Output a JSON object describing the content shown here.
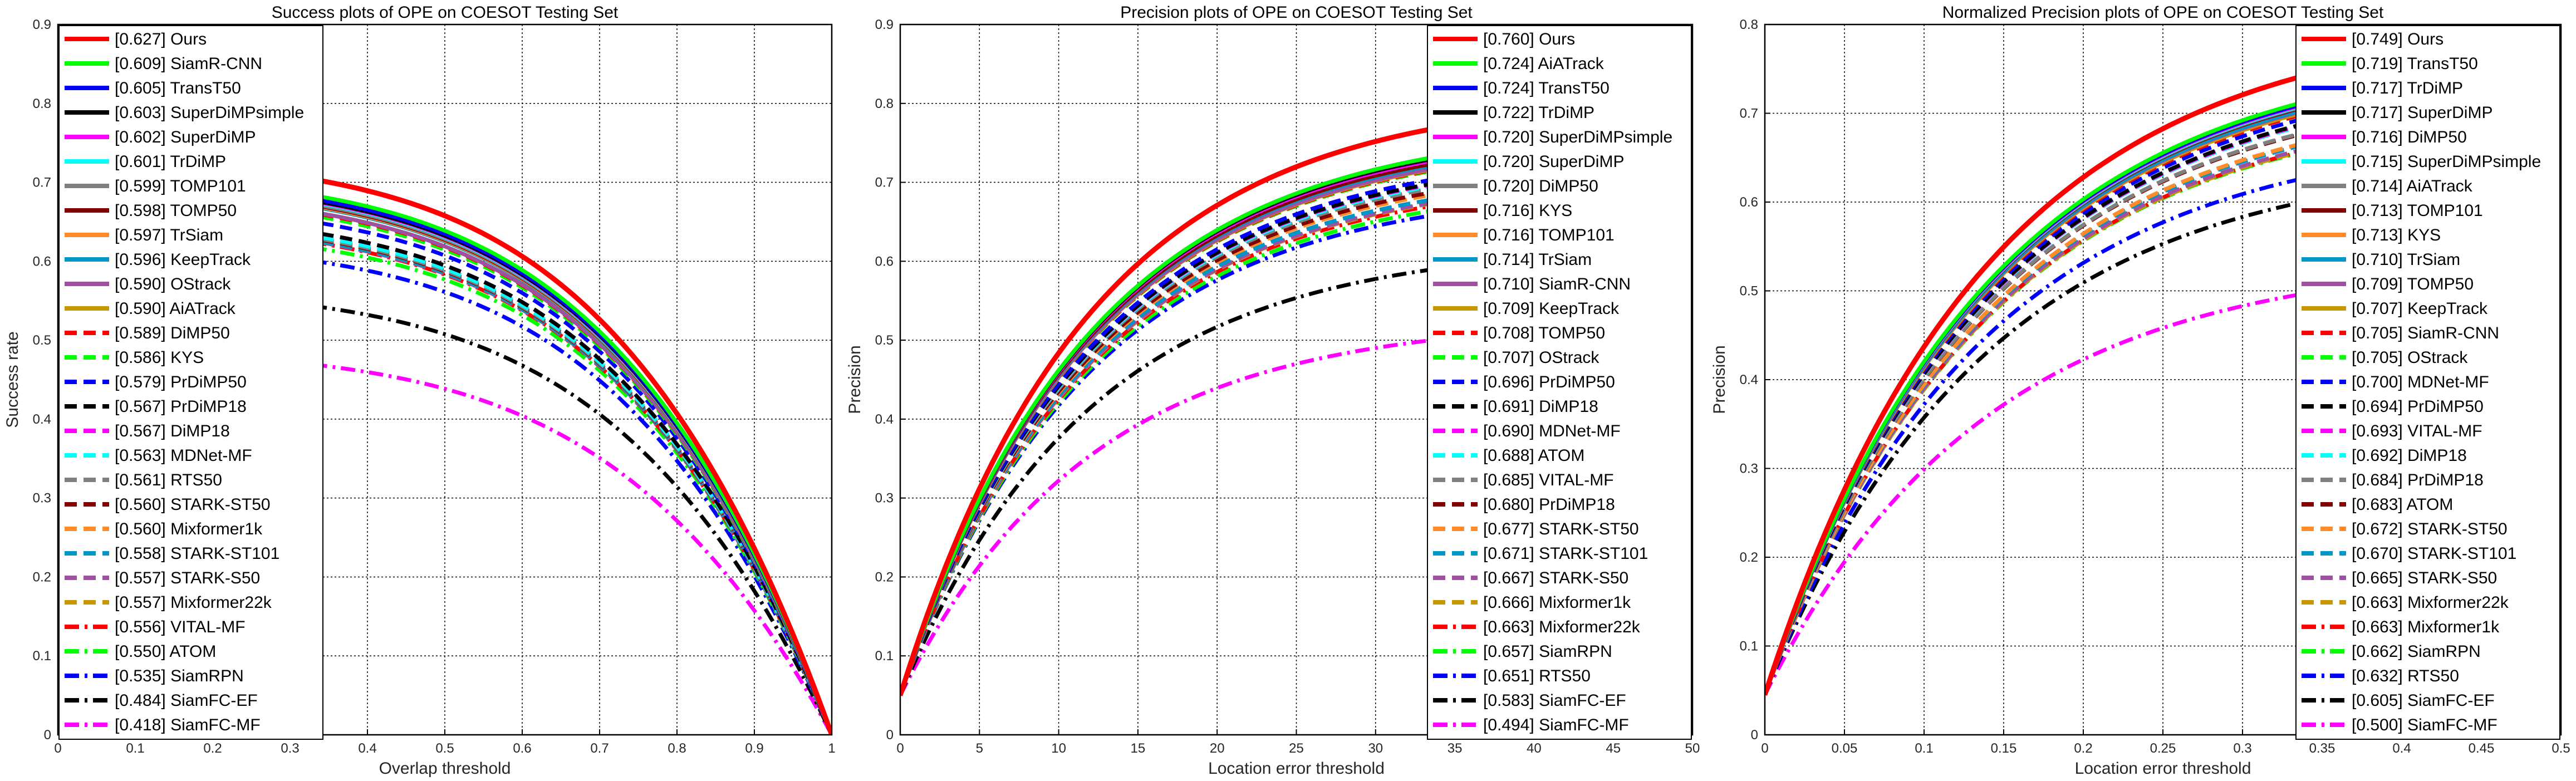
{
  "chart_data": [
    {
      "type": "line",
      "title": "Success plots of OPE on COESOT Testing Set",
      "xlabel": "Overlap threshold",
      "ylabel": "Success rate",
      "xlim": [
        0,
        1
      ],
      "ylim": [
        0,
        0.9
      ],
      "xticks": [
        "0",
        "0.1",
        "0.2",
        "0.3",
        "0.4",
        "0.5",
        "0.6",
        "0.7",
        "0.8",
        "0.9",
        "1"
      ],
      "yticks": [
        "0",
        "0.1",
        "0.2",
        "0.3",
        "0.4",
        "0.5",
        "0.6",
        "0.7",
        "0.8",
        "0.9"
      ],
      "grid": true,
      "legend_position": "left-inside",
      "curve_shape": "success",
      "legend_color": "#ffffff",
      "series": [
        {
          "label": "[0.627] Ours",
          "score": 0.627,
          "color": "#ff0000",
          "style": "solid"
        },
        {
          "label": "[0.609] SiamR-CNN",
          "score": 0.609,
          "color": "#00ff00",
          "style": "solid"
        },
        {
          "label": "[0.605] TransT50",
          "score": 0.605,
          "color": "#0000ff",
          "style": "solid"
        },
        {
          "label": "[0.603] SuperDiMPsimple",
          "score": 0.603,
          "color": "#000000",
          "style": "solid"
        },
        {
          "label": "[0.602] SuperDiMP",
          "score": 0.602,
          "color": "#ff00ff",
          "style": "solid"
        },
        {
          "label": "[0.601] TrDiMP",
          "score": 0.601,
          "color": "#00ffff",
          "style": "solid"
        },
        {
          "label": "[0.599] TOMP101",
          "score": 0.599,
          "color": "#808080",
          "style": "solid"
        },
        {
          "label": "[0.598] TOMP50",
          "score": 0.598,
          "color": "#800000",
          "style": "solid"
        },
        {
          "label": "[0.597] TrSiam",
          "score": 0.597,
          "color": "#ff8c28",
          "style": "solid"
        },
        {
          "label": "[0.596] KeepTrack",
          "score": 0.596,
          "color": "#0096c8",
          "style": "solid"
        },
        {
          "label": "[0.590] OStrack",
          "score": 0.59,
          "color": "#a050a0",
          "style": "solid"
        },
        {
          "label": "[0.590] AiATrack",
          "score": 0.59,
          "color": "#c89600",
          "style": "solid"
        },
        {
          "label": "[0.589] DiMP50",
          "score": 0.589,
          "color": "#ff0000",
          "style": "dash"
        },
        {
          "label": "[0.586] KYS",
          "score": 0.586,
          "color": "#00ff00",
          "style": "dash"
        },
        {
          "label": "[0.579] PrDiMP50",
          "score": 0.579,
          "color": "#0000ff",
          "style": "dash"
        },
        {
          "label": "[0.567] PrDiMP18",
          "score": 0.567,
          "color": "#000000",
          "style": "dash"
        },
        {
          "label": "[0.567] DiMP18",
          "score": 0.567,
          "color": "#ff00ff",
          "style": "dash"
        },
        {
          "label": "[0.563] MDNet-MF",
          "score": 0.563,
          "color": "#00ffff",
          "style": "dash"
        },
        {
          "label": "[0.561] RTS50",
          "score": 0.561,
          "color": "#808080",
          "style": "dash"
        },
        {
          "label": "[0.560] STARK-ST50",
          "score": 0.56,
          "color": "#800000",
          "style": "dash"
        },
        {
          "label": "[0.560] Mixformer1k",
          "score": 0.56,
          "color": "#ff8c28",
          "style": "dash"
        },
        {
          "label": "[0.558] STARK-ST101",
          "score": 0.558,
          "color": "#0096c8",
          "style": "dash"
        },
        {
          "label": "[0.557] STARK-S50",
          "score": 0.557,
          "color": "#a050a0",
          "style": "dash"
        },
        {
          "label": "[0.557] Mixformer22k",
          "score": 0.557,
          "color": "#c89600",
          "style": "dash"
        },
        {
          "label": "[0.556] VITAL-MF",
          "score": 0.556,
          "color": "#ff0000",
          "style": "dashdot"
        },
        {
          "label": "[0.550] ATOM",
          "score": 0.55,
          "color": "#00ff00",
          "style": "dashdot"
        },
        {
          "label": "[0.535] SiamRPN",
          "score": 0.535,
          "color": "#0000ff",
          "style": "dashdot"
        },
        {
          "label": "[0.484] SiamFC-EF",
          "score": 0.484,
          "color": "#000000",
          "style": "dashdot"
        },
        {
          "label": "[0.418] SiamFC-MF",
          "score": 0.418,
          "color": "#ff00ff",
          "style": "dashdot"
        }
      ]
    },
    {
      "type": "line",
      "title": "Precision plots of OPE on COESOT Testing Set",
      "xlabel": "Location error threshold",
      "ylabel": "Precision",
      "xlim": [
        0,
        50
      ],
      "ylim": [
        0,
        0.9
      ],
      "xticks": [
        "0",
        "5",
        "10",
        "15",
        "20",
        "25",
        "30",
        "35",
        "40",
        "45",
        "50"
      ],
      "yticks": [
        "0",
        "0.1",
        "0.2",
        "0.3",
        "0.4",
        "0.5",
        "0.6",
        "0.7",
        "0.8",
        "0.9"
      ],
      "grid": true,
      "legend_position": "right-inside",
      "curve_shape": "precision",
      "legend_color": "#ffffff",
      "series": [
        {
          "label": "[0.760] Ours",
          "score": 0.76,
          "color": "#ff0000",
          "style": "solid"
        },
        {
          "label": "[0.724] AiATrack",
          "score": 0.724,
          "color": "#00ff00",
          "style": "solid"
        },
        {
          "label": "[0.724] TransT50",
          "score": 0.724,
          "color": "#0000ff",
          "style": "solid"
        },
        {
          "label": "[0.722] TrDiMP",
          "score": 0.722,
          "color": "#000000",
          "style": "solid"
        },
        {
          "label": "[0.720] SuperDiMPsimple",
          "score": 0.72,
          "color": "#ff00ff",
          "style": "solid"
        },
        {
          "label": "[0.720] SuperDiMP",
          "score": 0.72,
          "color": "#00ffff",
          "style": "solid"
        },
        {
          "label": "[0.720] DiMP50",
          "score": 0.72,
          "color": "#808080",
          "style": "solid"
        },
        {
          "label": "[0.716] KYS",
          "score": 0.716,
          "color": "#800000",
          "style": "solid"
        },
        {
          "label": "[0.716] TOMP101",
          "score": 0.716,
          "color": "#ff8c28",
          "style": "solid"
        },
        {
          "label": "[0.714] TrSiam",
          "score": 0.714,
          "color": "#0096c8",
          "style": "solid"
        },
        {
          "label": "[0.710] SiamR-CNN",
          "score": 0.71,
          "color": "#a050a0",
          "style": "solid"
        },
        {
          "label": "[0.709] KeepTrack",
          "score": 0.709,
          "color": "#c89600",
          "style": "solid"
        },
        {
          "label": "[0.708] TOMP50",
          "score": 0.708,
          "color": "#ff0000",
          "style": "dash"
        },
        {
          "label": "[0.707] OStrack",
          "score": 0.707,
          "color": "#00ff00",
          "style": "dash"
        },
        {
          "label": "[0.696] PrDiMP50",
          "score": 0.696,
          "color": "#0000ff",
          "style": "dash"
        },
        {
          "label": "[0.691] DiMP18",
          "score": 0.691,
          "color": "#000000",
          "style": "dash"
        },
        {
          "label": "[0.690] MDNet-MF",
          "score": 0.69,
          "color": "#ff00ff",
          "style": "dash"
        },
        {
          "label": "[0.688] ATOM",
          "score": 0.688,
          "color": "#00ffff",
          "style": "dash"
        },
        {
          "label": "[0.685] VITAL-MF",
          "score": 0.685,
          "color": "#808080",
          "style": "dash"
        },
        {
          "label": "[0.680] PrDiMP18",
          "score": 0.68,
          "color": "#800000",
          "style": "dash"
        },
        {
          "label": "[0.677] STARK-ST50",
          "score": 0.677,
          "color": "#ff8c28",
          "style": "dash"
        },
        {
          "label": "[0.671] STARK-ST101",
          "score": 0.671,
          "color": "#0096c8",
          "style": "dash"
        },
        {
          "label": "[0.667] STARK-S50",
          "score": 0.667,
          "color": "#a050a0",
          "style": "dash"
        },
        {
          "label": "[0.666] Mixformer1k",
          "score": 0.666,
          "color": "#c89600",
          "style": "dash"
        },
        {
          "label": "[0.663] Mixformer22k",
          "score": 0.663,
          "color": "#ff0000",
          "style": "dashdot"
        },
        {
          "label": "[0.657] SiamRPN",
          "score": 0.657,
          "color": "#00ff00",
          "style": "dashdot"
        },
        {
          "label": "[0.651] RTS50",
          "score": 0.651,
          "color": "#0000ff",
          "style": "dashdot"
        },
        {
          "label": "[0.583] SiamFC-EF",
          "score": 0.583,
          "color": "#000000",
          "style": "dashdot"
        },
        {
          "label": "[0.494] SiamFC-MF",
          "score": 0.494,
          "color": "#ff00ff",
          "style": "dashdot"
        }
      ]
    },
    {
      "type": "line",
      "title": "Normalized Precision plots of OPE on COESOT Testing Set",
      "xlabel": "Location error threshold",
      "ylabel": "Precision",
      "xlim": [
        0,
        0.5
      ],
      "ylim": [
        0,
        0.8
      ],
      "xticks": [
        "0",
        "0.05",
        "0.1",
        "0.15",
        "0.2",
        "0.25",
        "0.3",
        "0.35",
        "0.4",
        "0.45",
        "0.5"
      ],
      "yticks": [
        "0",
        "0.1",
        "0.2",
        "0.3",
        "0.4",
        "0.5",
        "0.6",
        "0.7",
        "0.8"
      ],
      "grid": true,
      "legend_position": "right-inside",
      "curve_shape": "norm_precision",
      "legend_color": "#ffffff",
      "series": [
        {
          "label": "[0.749] Ours",
          "score": 0.749,
          "color": "#ff0000",
          "style": "solid"
        },
        {
          "label": "[0.719] TransT50",
          "score": 0.719,
          "color": "#00ff00",
          "style": "solid"
        },
        {
          "label": "[0.717] TrDiMP",
          "score": 0.717,
          "color": "#0000ff",
          "style": "solid"
        },
        {
          "label": "[0.717] SuperDiMP",
          "score": 0.717,
          "color": "#000000",
          "style": "solid"
        },
        {
          "label": "[0.716] DiMP50",
          "score": 0.716,
          "color": "#ff00ff",
          "style": "solid"
        },
        {
          "label": "[0.715] SuperDiMPsimple",
          "score": 0.715,
          "color": "#00ffff",
          "style": "solid"
        },
        {
          "label": "[0.714] AiATrack",
          "score": 0.714,
          "color": "#808080",
          "style": "solid"
        },
        {
          "label": "[0.713] TOMP101",
          "score": 0.713,
          "color": "#800000",
          "style": "solid"
        },
        {
          "label": "[0.713] KYS",
          "score": 0.713,
          "color": "#ff8c28",
          "style": "solid"
        },
        {
          "label": "[0.710] TrSiam",
          "score": 0.71,
          "color": "#0096c8",
          "style": "solid"
        },
        {
          "label": "[0.709] TOMP50",
          "score": 0.709,
          "color": "#a050a0",
          "style": "solid"
        },
        {
          "label": "[0.707] KeepTrack",
          "score": 0.707,
          "color": "#c89600",
          "style": "solid"
        },
        {
          "label": "[0.705] SiamR-CNN",
          "score": 0.705,
          "color": "#ff0000",
          "style": "dash"
        },
        {
          "label": "[0.705] OStrack",
          "score": 0.705,
          "color": "#00ff00",
          "style": "dash"
        },
        {
          "label": "[0.700] MDNet-MF",
          "score": 0.7,
          "color": "#0000ff",
          "style": "dash"
        },
        {
          "label": "[0.694] PrDiMP50",
          "score": 0.694,
          "color": "#000000",
          "style": "dash"
        },
        {
          "label": "[0.693] VITAL-MF",
          "score": 0.693,
          "color": "#ff00ff",
          "style": "dash"
        },
        {
          "label": "[0.692] DiMP18",
          "score": 0.692,
          "color": "#00ffff",
          "style": "dash"
        },
        {
          "label": "[0.684] PrDiMP18",
          "score": 0.684,
          "color": "#808080",
          "style": "dash"
        },
        {
          "label": "[0.683] ATOM",
          "score": 0.683,
          "color": "#800000",
          "style": "dash"
        },
        {
          "label": "[0.672] STARK-ST50",
          "score": 0.672,
          "color": "#ff8c28",
          "style": "dash"
        },
        {
          "label": "[0.670] STARK-ST101",
          "score": 0.67,
          "color": "#0096c8",
          "style": "dash"
        },
        {
          "label": "[0.665] STARK-S50",
          "score": 0.665,
          "color": "#a050a0",
          "style": "dash"
        },
        {
          "label": "[0.663] Mixformer22k",
          "score": 0.663,
          "color": "#c89600",
          "style": "dash"
        },
        {
          "label": "[0.663] Mixformer1k",
          "score": 0.663,
          "color": "#ff0000",
          "style": "dashdot"
        },
        {
          "label": "[0.662] SiamRPN",
          "score": 0.662,
          "color": "#00ff00",
          "style": "dashdot"
        },
        {
          "label": "[0.632] RTS50",
          "score": 0.632,
          "color": "#0000ff",
          "style": "dashdot"
        },
        {
          "label": "[0.605] SiamFC-EF",
          "score": 0.605,
          "color": "#000000",
          "style": "dashdot"
        },
        {
          "label": "[0.500] SiamFC-MF",
          "score": 0.5,
          "color": "#ff00ff",
          "style": "dashdot"
        }
      ]
    }
  ]
}
